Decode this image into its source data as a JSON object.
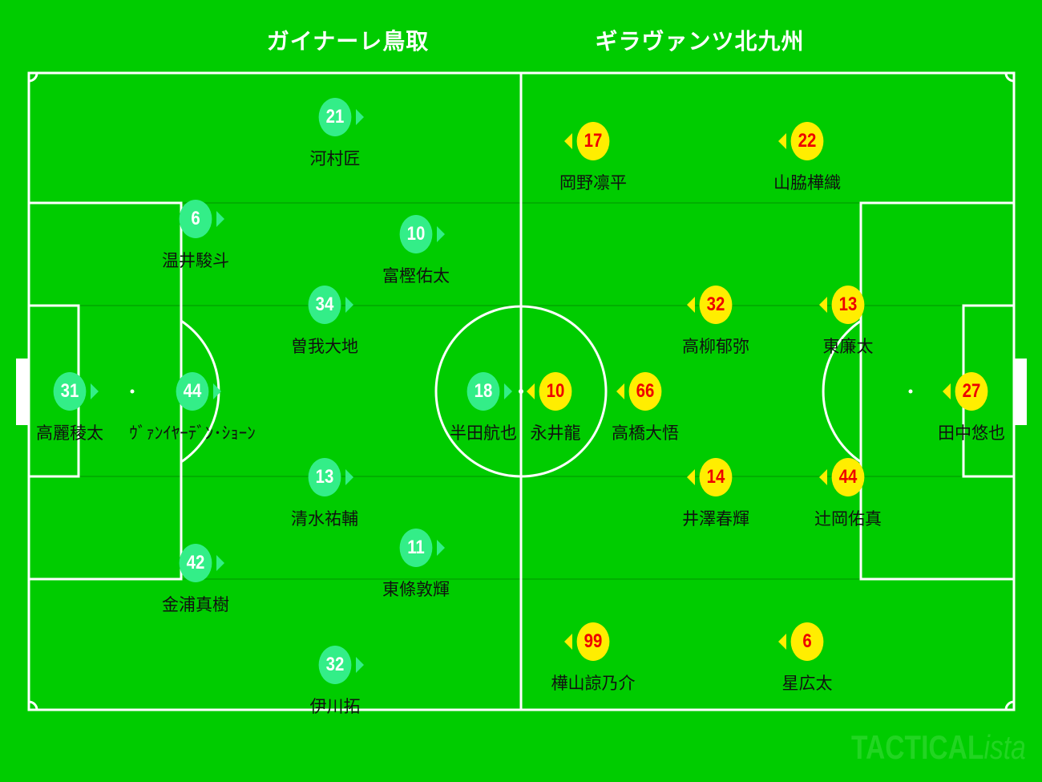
{
  "teams": {
    "home": "ガイナーレ鳥取",
    "away": "ギラヴァンツ北九州"
  },
  "colors": {
    "pitch": "#00cc00",
    "home": "#33ee88",
    "away": "#ffee00",
    "away_number": "#ee0000"
  },
  "home_players": [
    {
      "number": "21",
      "name": "河村匠"
    },
    {
      "number": "6",
      "name": "温井駿斗"
    },
    {
      "number": "10",
      "name": "富樫佑太"
    },
    {
      "number": "34",
      "name": "曽我大地"
    },
    {
      "number": "31",
      "name": "高麗稜太"
    },
    {
      "number": "44",
      "name": "ｳﾞｧﾝｲﾔｰﾃﾞﾝ･ｼｮｰﾝ"
    },
    {
      "number": "18",
      "name": "半田航也"
    },
    {
      "number": "13",
      "name": "清水祐輔"
    },
    {
      "number": "11",
      "name": "東條敦輝"
    },
    {
      "number": "42",
      "name": "金浦真樹"
    },
    {
      "number": "32",
      "name": "伊川拓"
    }
  ],
  "away_players": [
    {
      "number": "17",
      "name": "岡野凛平"
    },
    {
      "number": "22",
      "name": "山脇樺織"
    },
    {
      "number": "32",
      "name": "高柳郁弥"
    },
    {
      "number": "13",
      "name": "東廉太"
    },
    {
      "number": "10",
      "name": "永井龍"
    },
    {
      "number": "66",
      "name": "高橋大悟"
    },
    {
      "number": "27",
      "name": "田中悠也"
    },
    {
      "number": "14",
      "name": "井澤春輝"
    },
    {
      "number": "44",
      "name": "辻岡佑真"
    },
    {
      "number": "99",
      "name": "樺山諒乃介"
    },
    {
      "number": "6",
      "name": "星広太"
    }
  ],
  "watermark": {
    "main": "TACTICAL",
    "suffix": "ista"
  }
}
